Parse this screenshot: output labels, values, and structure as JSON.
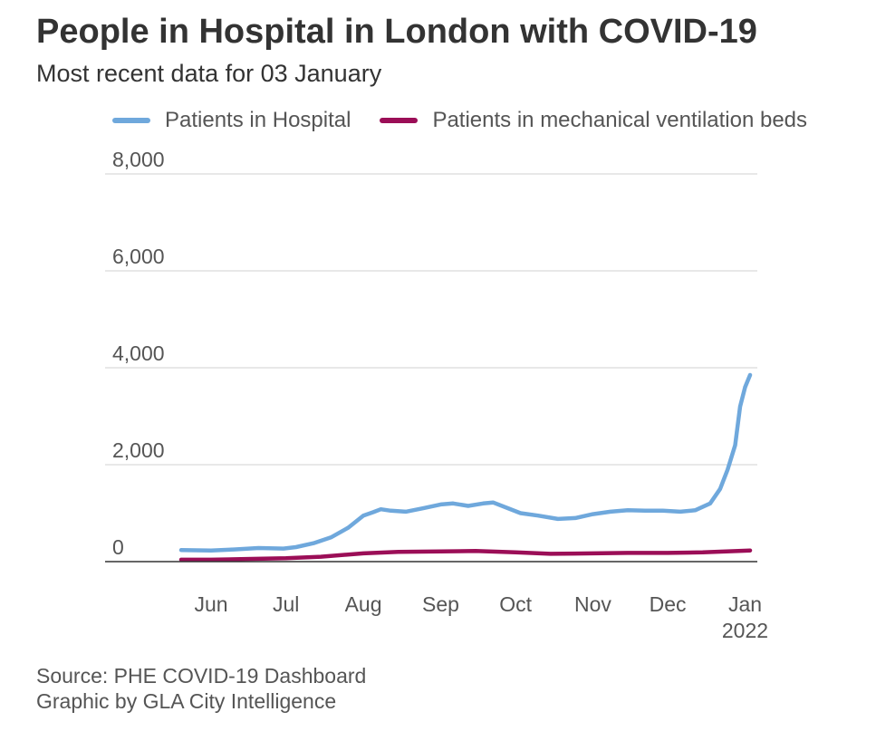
{
  "header": {
    "title": "People in Hospital in London with COVID-19",
    "subtitle": "Most recent data for 03 January"
  },
  "footer": {
    "source": "Source: PHE COVID-19 Dashboard",
    "credit": "Graphic by GLA City Intelligence"
  },
  "colors": {
    "hospital": "#6fa8dc",
    "ventilation": "#9b0e57",
    "grid": "#d9d9d9",
    "axis": "#333333"
  },
  "chart_data": {
    "type": "line",
    "title": "People in Hospital in London with COVID-19",
    "subtitle": "Most recent data for 03 January",
    "xlabel": "",
    "ylabel": "",
    "x_range": [
      "2021-05-20",
      "2022-01-03"
    ],
    "ylim": [
      0,
      8000
    ],
    "y_ticks": [
      {
        "value": 0,
        "label": "0"
      },
      {
        "value": 2000,
        "label": "2,000"
      },
      {
        "value": 4000,
        "label": "4,000"
      },
      {
        "value": 6000,
        "label": "6,000"
      },
      {
        "value": 8000,
        "label": "8,000"
      }
    ],
    "x_ticks": [
      {
        "date": "2021-06-01",
        "label": "Jun"
      },
      {
        "date": "2021-07-01",
        "label": "Jul"
      },
      {
        "date": "2021-08-01",
        "label": "Aug"
      },
      {
        "date": "2021-09-01",
        "label": "Sep"
      },
      {
        "date": "2021-10-01",
        "label": "Oct"
      },
      {
        "date": "2021-11-01",
        "label": "Nov"
      },
      {
        "date": "2021-12-01",
        "label": "Dec"
      },
      {
        "date": "2022-01-01",
        "label": "Jan",
        "sublabel": "2022"
      }
    ],
    "grid": true,
    "legend_position": "top",
    "series": [
      {
        "name": "Patients in Hospital",
        "color": "#6fa8dc",
        "points": [
          [
            "2021-05-20",
            240
          ],
          [
            "2021-06-01",
            230
          ],
          [
            "2021-06-10",
            250
          ],
          [
            "2021-06-20",
            280
          ],
          [
            "2021-06-30",
            270
          ],
          [
            "2021-07-05",
            300
          ],
          [
            "2021-07-12",
            380
          ],
          [
            "2021-07-19",
            500
          ],
          [
            "2021-07-26",
            700
          ],
          [
            "2021-08-01",
            950
          ],
          [
            "2021-08-05",
            1020
          ],
          [
            "2021-08-08",
            1080
          ],
          [
            "2021-08-12",
            1050
          ],
          [
            "2021-08-18",
            1030
          ],
          [
            "2021-08-25",
            1100
          ],
          [
            "2021-09-01",
            1180
          ],
          [
            "2021-09-06",
            1200
          ],
          [
            "2021-09-12",
            1150
          ],
          [
            "2021-09-18",
            1200
          ],
          [
            "2021-09-22",
            1220
          ],
          [
            "2021-09-28",
            1100
          ],
          [
            "2021-10-03",
            1000
          ],
          [
            "2021-10-10",
            950
          ],
          [
            "2021-10-18",
            880
          ],
          [
            "2021-10-25",
            900
          ],
          [
            "2021-11-01",
            980
          ],
          [
            "2021-11-08",
            1030
          ],
          [
            "2021-11-15",
            1060
          ],
          [
            "2021-11-22",
            1050
          ],
          [
            "2021-11-29",
            1050
          ],
          [
            "2021-12-06",
            1030
          ],
          [
            "2021-12-12",
            1060
          ],
          [
            "2021-12-18",
            1200
          ],
          [
            "2021-12-22",
            1500
          ],
          [
            "2021-12-25",
            1900
          ],
          [
            "2021-12-28",
            2400
          ],
          [
            "2021-12-30",
            3200
          ],
          [
            "2022-01-01",
            3600
          ],
          [
            "2022-01-03",
            3850
          ]
        ]
      },
      {
        "name": "Patients in mechanical ventilation beds",
        "color": "#9b0e57",
        "points": [
          [
            "2021-05-20",
            40
          ],
          [
            "2021-06-01",
            40
          ],
          [
            "2021-06-15",
            55
          ],
          [
            "2021-07-01",
            70
          ],
          [
            "2021-07-15",
            100
          ],
          [
            "2021-08-01",
            170
          ],
          [
            "2021-08-15",
            200
          ],
          [
            "2021-09-01",
            210
          ],
          [
            "2021-09-15",
            220
          ],
          [
            "2021-10-01",
            190
          ],
          [
            "2021-10-15",
            160
          ],
          [
            "2021-11-01",
            170
          ],
          [
            "2021-11-15",
            180
          ],
          [
            "2021-12-01",
            180
          ],
          [
            "2021-12-15",
            190
          ],
          [
            "2022-01-03",
            230
          ]
        ]
      }
    ]
  }
}
